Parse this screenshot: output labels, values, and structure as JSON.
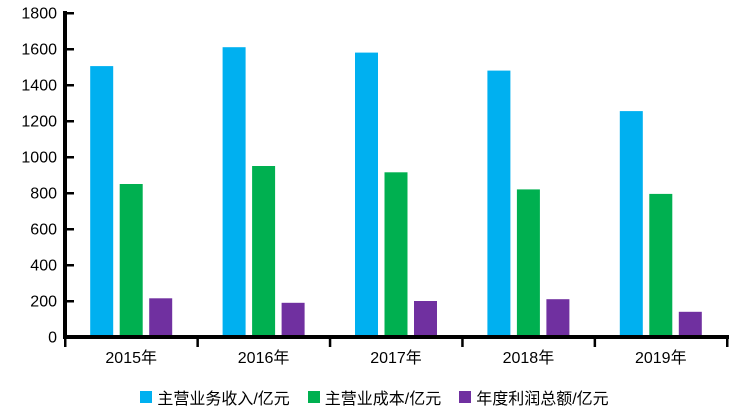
{
  "chart_data": {
    "type": "bar",
    "title": "",
    "xlabel": "",
    "ylabel": "",
    "categories": [
      "2015年",
      "2016年",
      "2017年",
      "2018年",
      "2019年"
    ],
    "series": [
      {
        "name": "主营业务收入/亿元",
        "color": "#00B0F0",
        "values": [
          1505,
          1610,
          1580,
          1480,
          1255
        ]
      },
      {
        "name": "主营业成本/亿元",
        "color": "#00B050",
        "values": [
          850,
          950,
          915,
          820,
          795
        ]
      },
      {
        "name": "年度利润总额/亿元",
        "color": "#7030A0",
        "values": [
          215,
          190,
          200,
          210,
          140
        ]
      }
    ],
    "ylim": [
      0,
      1800
    ],
    "ytick_step": 200,
    "ytick_labels": [
      "0",
      "200",
      "400",
      "600",
      "800",
      "1000",
      "1200",
      "1400",
      "1600",
      "1800"
    ],
    "grid": false,
    "legend_position": "bottom",
    "axis_color": "#000000",
    "text_color": "#000000",
    "background_color": "#FFFFFF"
  }
}
